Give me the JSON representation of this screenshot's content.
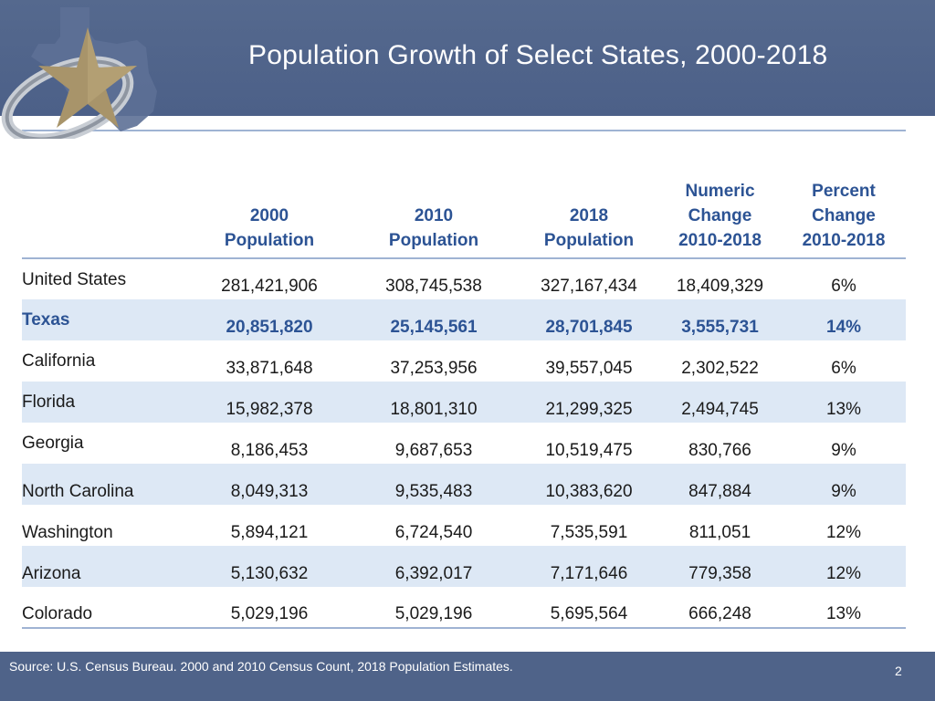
{
  "title": "Population Growth of Select States, 2000-2018",
  "colors": {
    "header": "#4f6389",
    "accent": "#2c5394",
    "row_shade": "#dde8f5",
    "rule": "#9fb3d3",
    "logo_star": "#a8946a"
  },
  "table": {
    "headers": [
      {
        "line1": "",
        "line2": "",
        "line3": ""
      },
      {
        "line1": "",
        "line2": "2000",
        "line3": "Population"
      },
      {
        "line1": "",
        "line2": "2010",
        "line3": "Population"
      },
      {
        "line1": "",
        "line2": "2018",
        "line3": "Population"
      },
      {
        "line1": "Numeric",
        "line2": "Change",
        "line3": "2010-2018"
      },
      {
        "line1": "Percent",
        "line2": "Change",
        "line3": "2010-2018"
      }
    ],
    "rows": [
      {
        "name": "United States",
        "pop2000": "281,421,906",
        "pop2010": "308,745,538",
        "pop2018": "327,167,434",
        "numeric": "18,409,329",
        "percent": "6%"
      },
      {
        "name": "Texas",
        "pop2000": "20,851,820",
        "pop2010": "25,145,561",
        "pop2018": "28,701,845",
        "numeric": "3,555,731",
        "percent": "14%"
      },
      {
        "name": "California",
        "pop2000": "33,871,648",
        "pop2010": "37,253,956",
        "pop2018": "39,557,045",
        "numeric": "2,302,522",
        "percent": "6%"
      },
      {
        "name": "Florida",
        "pop2000": "15,982,378",
        "pop2010": "18,801,310",
        "pop2018": "21,299,325",
        "numeric": "2,494,745",
        "percent": "13%"
      },
      {
        "name": "Georgia",
        "pop2000": "8,186,453",
        "pop2010": "9,687,653",
        "pop2018": "10,519,475",
        "numeric": "830,766",
        "percent": "9%"
      },
      {
        "name": "North Carolina",
        "pop2000": "8,049,313",
        "pop2010": "9,535,483",
        "pop2018": "10,383,620",
        "numeric": "847,884",
        "percent": "9%"
      },
      {
        "name": "Washington",
        "pop2000": "5,894,121",
        "pop2010": "6,724,540",
        "pop2018": "7,535,591",
        "numeric": "811,051",
        "percent": "12%"
      },
      {
        "name": "Arizona",
        "pop2000": "5,130,632",
        "pop2010": "6,392,017",
        "pop2018": "7,171,646",
        "numeric": "779,358",
        "percent": "12%"
      },
      {
        "name": "Colorado",
        "pop2000": "5,029,196",
        "pop2010": "5,029,196",
        "pop2018": "5,695,564",
        "numeric": "666,248",
        "percent": "13%"
      }
    ]
  },
  "footer": {
    "source": "Source: U.S. Census Bureau. 2000 and 2010 Census Count, 2018 Population Estimates.",
    "page": "2"
  }
}
